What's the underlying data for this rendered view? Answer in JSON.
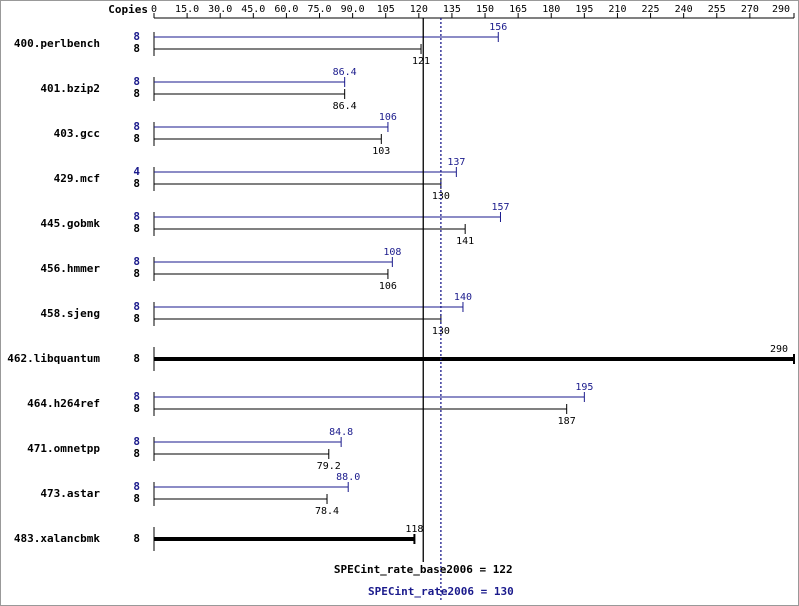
{
  "chart_data": {
    "type": "bar",
    "x_label": "Copies",
    "categories": [
      "400.perlbench",
      "401.bzip2",
      "403.gcc",
      "429.mcf",
      "445.gobmk",
      "456.hmmer",
      "458.sjeng",
      "462.libquantum",
      "464.h264ref",
      "471.omnetpp",
      "473.astar",
      "483.xalancbmk"
    ],
    "series": [
      {
        "color": "#1a1a8c",
        "copies": [
          8,
          8,
          8,
          4,
          8,
          8,
          8,
          null,
          8,
          8,
          8,
          null
        ],
        "values": [
          156,
          86.4,
          106,
          137,
          157,
          108,
          140,
          null,
          195,
          84.8,
          88.0,
          null
        ],
        "value_labels": [
          "156",
          "86.4",
          "106",
          "137",
          "157",
          "108",
          "140",
          null,
          "195",
          "84.8",
          "88.0",
          null
        ]
      },
      {
        "color": "#000000",
        "copies": [
          8,
          8,
          8,
          8,
          8,
          8,
          8,
          8,
          8,
          8,
          8,
          8
        ],
        "values": [
          121,
          86.4,
          103,
          130,
          141,
          106,
          130,
          290,
          187,
          79.2,
          78.4,
          118
        ],
        "value_labels": [
          "121",
          "86.4",
          "103",
          "130",
          "141",
          "106",
          "130",
          "290",
          "187",
          "79.2",
          "78.4",
          "118"
        ]
      }
    ],
    "xlim": [
      0,
      290
    ],
    "xticks": [
      0,
      {
        "value": 15,
        "label": "15.0"
      },
      {
        "value": 30,
        "label": "30.0"
      },
      {
        "value": 45,
        "label": "45.0"
      },
      {
        "value": 60,
        "label": "60.0"
      },
      {
        "value": 75,
        "label": "75.0"
      },
      {
        "value": 90,
        "label": "90.0"
      },
      105,
      120,
      135,
      150,
      165,
      180,
      195,
      210,
      225,
      240,
      255,
      270,
      290
    ],
    "reference_lines": [
      {
        "value": 122,
        "label": "SPECint_rate_base2006 = 122",
        "color": "#000000",
        "dashed": false
      },
      {
        "value": 130,
        "label": "SPECint_rate2006 = 130",
        "color": "#1a1a8c",
        "dashed": true
      }
    ]
  }
}
